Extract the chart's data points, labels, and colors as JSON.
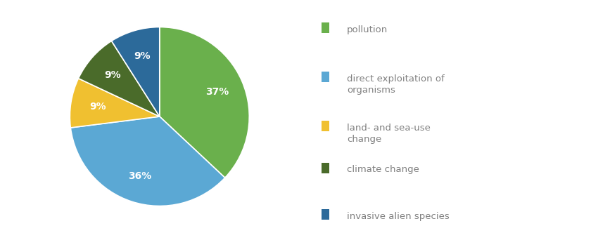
{
  "slices": [
    37,
    36,
    9,
    9,
    9
  ],
  "colors": [
    "#6ab04c",
    "#5ba8d4",
    "#f0c030",
    "#4a6b2a",
    "#2c6a9a"
  ],
  "pct_labels": [
    "37%",
    "36%",
    "9%",
    "9%",
    "9%"
  ],
  "pct_label_colors": [
    "white",
    "white",
    "white",
    "white",
    "white"
  ],
  "background_color": "#ffffff",
  "legend_labels": [
    "pollution",
    "direct exploitation of\norganisms",
    "land- and sea-use\nchange",
    "climate change",
    "invasive alien species"
  ],
  "legend_colors": [
    "#6ab04c",
    "#5ba8d4",
    "#f0c030",
    "#4a6b2a",
    "#2c6a9a"
  ],
  "legend_text_color": "#808080",
  "startangle": 90,
  "pct_distance": 0.7,
  "pct_fontsize": 10,
  "legend_fontsize": 9.5
}
